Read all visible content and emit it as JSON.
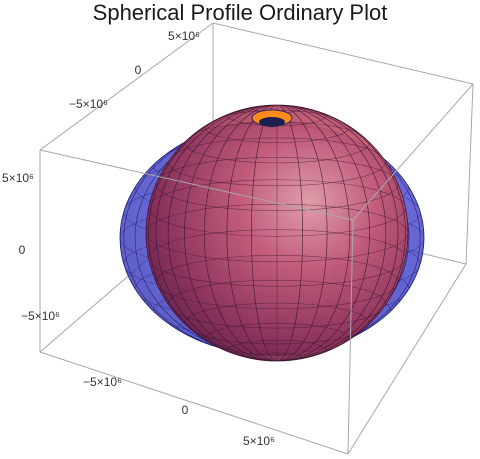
{
  "chart_data": {
    "type": "3d-surface",
    "title": "Spherical Profile Ordinary Plot",
    "surfaces": [
      {
        "color": "#3a3ad6",
        "opacity": 0.55
      },
      {
        "color": "#c4405a",
        "opacity": 0.85
      }
    ],
    "inner_cap_color": "#ff8c1a",
    "ticks": {
      "top_left": [
        "5×10⁶",
        "0",
        "−5×10⁶"
      ],
      "left_vertical": [
        "5×10⁶",
        "0",
        "−5×10⁶"
      ],
      "bottom": [
        "−5×10⁶",
        "0",
        "5×10⁶"
      ]
    }
  }
}
